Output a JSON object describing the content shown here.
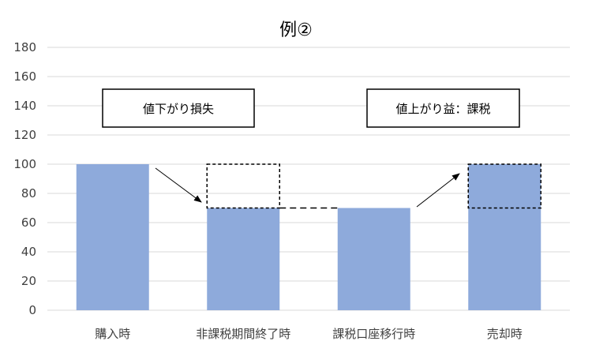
{
  "chart_data": {
    "type": "bar",
    "title": "例②",
    "categories": [
      "購入時",
      "非課税期間終了時",
      "課税口座移行時",
      "売却時"
    ],
    "values": [
      100,
      70,
      70,
      100
    ],
    "ylim": [
      0,
      180
    ],
    "yticks": [
      0,
      20,
      40,
      60,
      80,
      100,
      120,
      140,
      160,
      180
    ],
    "grid": true,
    "bar_color": "#8eaadb",
    "dashed_boxes": [
      {
        "category": "非課税期間終了時",
        "from": 70,
        "to": 100
      },
      {
        "category": "売却時",
        "from": 70,
        "to": 100
      }
    ],
    "dashed_connector": {
      "from": "非課税期間終了時",
      "to": "課税口座移行時",
      "value": 70
    },
    "annotations": [
      {
        "text": "値下がり損失",
        "arrow_from": "購入時",
        "arrow_to": "非課税期間終了時"
      },
      {
        "text": "値上がり益：課税",
        "arrow_from": "課税口座移行時",
        "arrow_to": "売却時"
      }
    ]
  }
}
